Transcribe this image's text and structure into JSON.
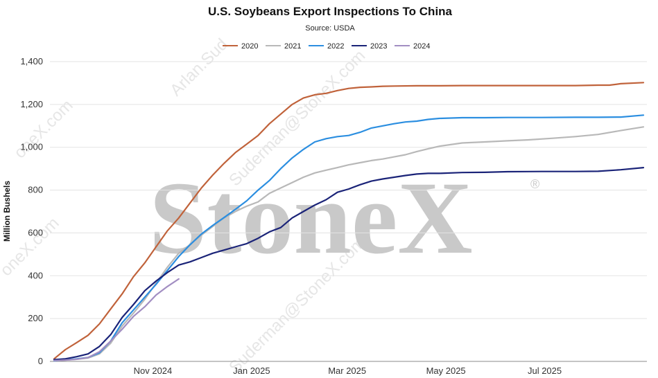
{
  "chart_data": {
    "type": "line",
    "title": "U.S. Soybeans Export Inspections To China",
    "subtitle": "Source: USDA",
    "ylabel": "Million Bushels",
    "xlabel": "",
    "ylim": [
      0,
      1400
    ],
    "yticks": [
      0,
      200,
      400,
      600,
      800,
      1000,
      1200,
      1400
    ],
    "ytick_labels": [
      "0",
      "200",
      "400",
      "600",
      "800",
      "1,000",
      "1,200",
      "1,400"
    ],
    "x_domain": [
      "2024-09-01",
      "2025-08-31"
    ],
    "xticks": [
      {
        "label": "Nov 2024",
        "date": "2024-11-01"
      },
      {
        "label": "Jan 2025",
        "date": "2025-01-01"
      },
      {
        "label": "Mar 2025",
        "date": "2025-03-01"
      },
      {
        "label": "May 2025",
        "date": "2025-05-01"
      },
      {
        "label": "Jul 2025",
        "date": "2025-07-01"
      }
    ],
    "grid": true,
    "legend_position": "top-center",
    "watermark": "StoneX",
    "series": [
      {
        "name": "2020",
        "color": "#c0623a",
        "dates": [
          "2024-09-01",
          "2024-09-08",
          "2024-09-15",
          "2024-09-22",
          "2024-09-29",
          "2024-10-06",
          "2024-10-13",
          "2024-10-20",
          "2024-10-27",
          "2024-11-03",
          "2024-11-10",
          "2024-11-17",
          "2024-11-24",
          "2024-12-01",
          "2024-12-08",
          "2024-12-15",
          "2024-12-22",
          "2024-12-29",
          "2025-01-05",
          "2025-01-12",
          "2025-01-19",
          "2025-01-26",
          "2025-02-02",
          "2025-02-09",
          "2025-02-16",
          "2025-02-23",
          "2025-03-02",
          "2025-03-09",
          "2025-03-16",
          "2025-03-23",
          "2025-03-30",
          "2025-04-13",
          "2025-04-27",
          "2025-05-11",
          "2025-05-25",
          "2025-06-08",
          "2025-06-29",
          "2025-07-20",
          "2025-08-03",
          "2025-08-10",
          "2025-08-17",
          "2025-08-31"
        ],
        "values": [
          12,
          55,
          88,
          122,
          175,
          245,
          315,
          395,
          460,
          535,
          610,
          670,
          740,
          810,
          870,
          925,
          975,
          1015,
          1055,
          1110,
          1155,
          1200,
          1230,
          1245,
          1252,
          1265,
          1275,
          1280,
          1282,
          1285,
          1286,
          1287,
          1287,
          1288,
          1288,
          1288,
          1288,
          1288,
          1290,
          1290,
          1297,
          1302
        ]
      },
      {
        "name": "2021",
        "color": "#b8b8b8",
        "dates": [
          "2024-09-01",
          "2024-09-15",
          "2024-09-22",
          "2024-09-29",
          "2024-10-06",
          "2024-10-13",
          "2024-10-20",
          "2024-10-27",
          "2024-11-03",
          "2024-11-10",
          "2024-11-17",
          "2024-11-24",
          "2024-12-01",
          "2024-12-08",
          "2024-12-15",
          "2024-12-22",
          "2024-12-29",
          "2025-01-05",
          "2025-01-12",
          "2025-01-19",
          "2025-01-26",
          "2025-02-02",
          "2025-02-09",
          "2025-02-16",
          "2025-02-23",
          "2025-03-02",
          "2025-03-09",
          "2025-03-16",
          "2025-03-23",
          "2025-03-30",
          "2025-04-06",
          "2025-04-13",
          "2025-04-20",
          "2025-04-27",
          "2025-05-11",
          "2025-05-25",
          "2025-06-08",
          "2025-06-22",
          "2025-07-06",
          "2025-07-20",
          "2025-08-03",
          "2025-08-17",
          "2025-08-31"
        ],
        "values": [
          3,
          10,
          16,
          35,
          85,
          165,
          225,
          290,
          365,
          440,
          505,
          545,
          590,
          630,
          670,
          700,
          725,
          745,
          785,
          810,
          835,
          860,
          880,
          893,
          905,
          918,
          928,
          938,
          945,
          955,
          965,
          980,
          993,
          1005,
          1020,
          1025,
          1030,
          1035,
          1042,
          1050,
          1060,
          1078,
          1095
        ]
      },
      {
        "name": "2022",
        "color": "#2b8ee0",
        "dates": [
          "2024-09-01",
          "2024-09-15",
          "2024-09-22",
          "2024-09-29",
          "2024-10-06",
          "2024-10-13",
          "2024-10-20",
          "2024-10-27",
          "2024-11-03",
          "2024-11-10",
          "2024-11-17",
          "2024-11-24",
          "2024-12-01",
          "2024-12-08",
          "2024-12-15",
          "2024-12-22",
          "2024-12-29",
          "2025-01-05",
          "2025-01-12",
          "2025-01-19",
          "2025-01-26",
          "2025-02-02",
          "2025-02-09",
          "2025-02-16",
          "2025-02-23",
          "2025-03-02",
          "2025-03-09",
          "2025-03-16",
          "2025-03-23",
          "2025-03-30",
          "2025-04-06",
          "2025-04-13",
          "2025-04-20",
          "2025-04-27",
          "2025-05-11",
          "2025-05-25",
          "2025-06-08",
          "2025-06-29",
          "2025-07-20",
          "2025-08-03",
          "2025-08-17",
          "2025-08-31"
        ],
        "values": [
          3,
          12,
          18,
          40,
          95,
          180,
          240,
          300,
          360,
          425,
          490,
          545,
          595,
          635,
          672,
          710,
          750,
          800,
          845,
          900,
          950,
          990,
          1025,
          1040,
          1050,
          1055,
          1070,
          1090,
          1100,
          1110,
          1118,
          1122,
          1130,
          1135,
          1138,
          1138,
          1139,
          1139,
          1140,
          1140,
          1141,
          1150
        ]
      },
      {
        "name": "2023",
        "color": "#1a2378",
        "dates": [
          "2024-09-01",
          "2024-09-08",
          "2024-09-15",
          "2024-09-22",
          "2024-09-29",
          "2024-10-06",
          "2024-10-13",
          "2024-10-20",
          "2024-10-27",
          "2024-11-03",
          "2024-11-10",
          "2024-11-17",
          "2024-11-24",
          "2024-12-01",
          "2024-12-08",
          "2024-12-15",
          "2024-12-22",
          "2024-12-29",
          "2025-01-05",
          "2025-01-12",
          "2025-01-19",
          "2025-01-26",
          "2025-02-02",
          "2025-02-09",
          "2025-02-16",
          "2025-02-23",
          "2025-03-02",
          "2025-03-09",
          "2025-03-16",
          "2025-03-23",
          "2025-03-30",
          "2025-04-06",
          "2025-04-13",
          "2025-04-20",
          "2025-04-27",
          "2025-05-11",
          "2025-05-25",
          "2025-06-08",
          "2025-06-29",
          "2025-07-20",
          "2025-08-03",
          "2025-08-17",
          "2025-08-31"
        ],
        "values": [
          8,
          12,
          22,
          35,
          70,
          125,
          205,
          265,
          330,
          375,
          415,
          450,
          465,
          485,
          505,
          520,
          535,
          550,
          575,
          605,
          625,
          670,
          700,
          730,
          755,
          790,
          805,
          825,
          842,
          852,
          860,
          868,
          875,
          878,
          878,
          882,
          883,
          886,
          887,
          887,
          888,
          895,
          905
        ]
      },
      {
        "name": "2024",
        "color": "#a28ec2",
        "dates": [
          "2024-09-01",
          "2024-09-08",
          "2024-09-15",
          "2024-09-22",
          "2024-09-29",
          "2024-10-06",
          "2024-10-13",
          "2024-10-20",
          "2024-10-27",
          "2024-11-03",
          "2024-11-10",
          "2024-11-17"
        ],
        "values": [
          4,
          6,
          10,
          18,
          45,
          95,
          150,
          210,
          255,
          310,
          350,
          385
        ]
      }
    ]
  }
}
